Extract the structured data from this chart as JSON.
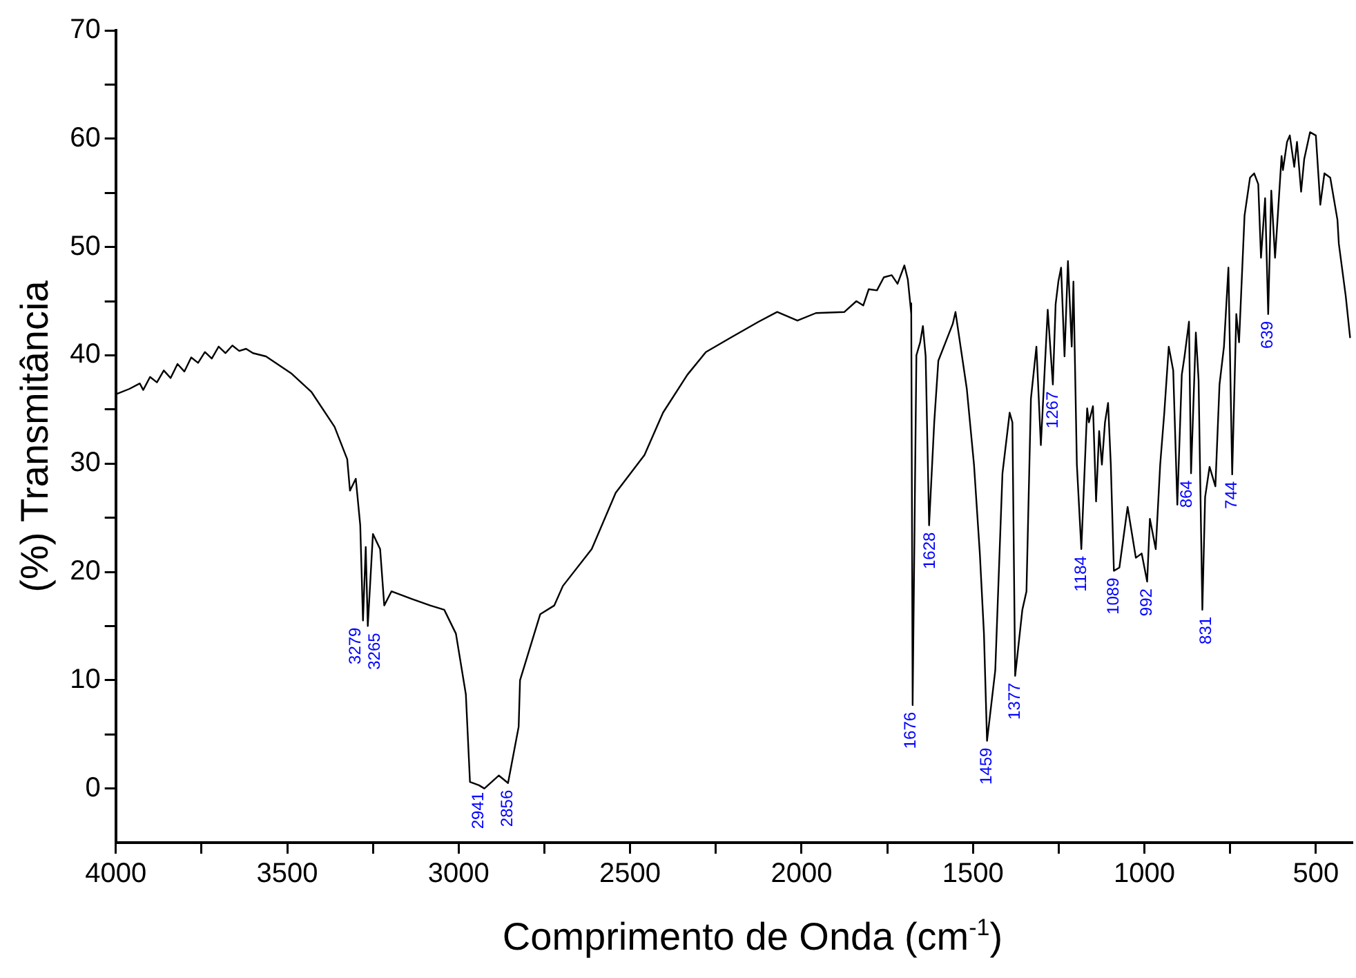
{
  "chart_data": {
    "type": "line",
    "xlabel": "Comprimento de Onda (cm$^{-1}$)",
    "ylabel": "(%) Transmitância",
    "color": "#000000",
    "grid": false,
    "legend": false,
    "xlim": [
      4000,
      395
    ],
    "xticks": [
      4000,
      {
        "value": 3750,
        "label": null
      },
      3500,
      {
        "value": 3250,
        "label": null
      },
      3000,
      {
        "value": 2750,
        "label": null
      },
      2500,
      {
        "value": 2250,
        "label": null
      },
      2000,
      {
        "value": 1750,
        "label": null
      },
      1500,
      {
        "value": 1250,
        "label": null
      },
      1000,
      {
        "value": 750,
        "label": null
      },
      500
    ],
    "ylim": [
      -5,
      70
    ],
    "yticks": [
      0,
      {
        "value": 5,
        "label": null
      },
      10,
      {
        "value": 15,
        "label": null
      },
      20,
      {
        "value": 25,
        "label": null
      },
      30,
      {
        "value": 35,
        "label": null
      },
      40,
      {
        "value": 45,
        "label": null
      },
      50,
      {
        "value": 55,
        "label": null
      },
      60,
      {
        "value": 65,
        "label": null
      },
      70
    ],
    "x": [
      4000,
      3960,
      3930,
      3920,
      3900,
      3880,
      3860,
      3840,
      3820,
      3800,
      3780,
      3760,
      3740,
      3720,
      3700,
      3680,
      3660,
      3640,
      3620,
      3600,
      3562,
      3487,
      3429,
      3362,
      3325,
      3317,
      3300,
      3287,
      3279,
      3271,
      3265,
      3250,
      3229,
      3217,
      3196,
      3137,
      3083,
      3042,
      3008,
      2979,
      2967,
      2941,
      2925,
      2883,
      2856,
      2825,
      2821,
      2762,
      2721,
      2696,
      2612,
      2542,
      2458,
      2404,
      2333,
      2279,
      2208,
      2125,
      2071,
      2012,
      1958,
      1875,
      1840,
      1820,
      1804,
      1780,
      1760,
      1737,
      1720,
      1700,
      1690,
      1683,
      1680,
      1676,
      1665,
      1654,
      1646,
      1638,
      1628,
      1613,
      1601,
      1580,
      1559,
      1551,
      1538,
      1518,
      1497,
      1480,
      1468,
      1459,
      1435,
      1414,
      1393,
      1385,
      1377,
      1356,
      1344,
      1331,
      1315,
      1302,
      1282,
      1267,
      1259,
      1251,
      1243,
      1233,
      1223,
      1212,
      1207,
      1197,
      1184,
      1167,
      1162,
      1150,
      1141,
      1132,
      1124,
      1115,
      1106,
      1098,
      1089,
      1073,
      1049,
      1025,
      1008,
      992,
      984,
      967,
      954,
      942,
      929,
      916,
      904,
      891,
      883,
      870,
      864,
      850,
      842,
      831,
      823,
      810,
      793,
      781,
      768,
      755,
      744,
      732,
      724,
      708,
      692,
      680,
      668,
      660,
      648,
      639,
      630,
      619,
      611,
      600,
      596,
      584,
      576,
      563,
      555,
      543,
      534,
      517,
      500,
      487,
      475,
      458,
      437,
      433,
      413,
      400
    ],
    "values": [
      36.4,
      36.9,
      37.4,
      36.8,
      38.0,
      37.5,
      38.6,
      37.9,
      39.2,
      38.5,
      39.8,
      39.3,
      40.3,
      39.7,
      40.8,
      40.2,
      40.9,
      40.4,
      40.6,
      40.2,
      39.9,
      38.3,
      36.6,
      33.4,
      30.4,
      27.5,
      28.6,
      24.3,
      15.5,
      22.3,
      15.0,
      23.5,
      22.1,
      16.9,
      18.2,
      17.5,
      16.9,
      16.5,
      14.3,
      8.7,
      0.6,
      0.3,
      0.0,
      1.2,
      0.5,
      5.7,
      10.0,
      16.1,
      16.9,
      18.7,
      22.1,
      27.3,
      30.8,
      34.7,
      38.2,
      40.3,
      41.6,
      43.1,
      44.0,
      43.2,
      43.9,
      44.0,
      45.0,
      44.6,
      46.1,
      46.0,
      47.2,
      47.4,
      46.6,
      48.3,
      47.0,
      44.8,
      43.8,
      7.7,
      40.0,
      41.2,
      42.7,
      39.9,
      24.3,
      33.8,
      39.5,
      41.2,
      42.9,
      44.0,
      41.2,
      36.9,
      29.9,
      21.7,
      14.3,
      4.4,
      10.9,
      29.1,
      34.7,
      33.8,
      10.4,
      16.5,
      18.2,
      36.0,
      40.8,
      31.7,
      44.2,
      37.3,
      44.7,
      46.8,
      48.1,
      39.9,
      48.7,
      40.8,
      46.8,
      29.9,
      22.1,
      35.1,
      33.8,
      35.3,
      26.5,
      33.0,
      29.9,
      33.8,
      35.6,
      29.9,
      20.1,
      20.4,
      26.0,
      21.3,
      21.7,
      19.1,
      24.9,
      22.1,
      29.9,
      34.7,
      40.8,
      38.6,
      26.2,
      38.2,
      39.9,
      43.1,
      29.1,
      42.1,
      37.7,
      16.5,
      26.9,
      29.7,
      27.9,
      37.3,
      40.8,
      48.1,
      29.0,
      43.8,
      41.2,
      52.9,
      56.4,
      56.8,
      55.8,
      49.0,
      54.5,
      43.8,
      55.2,
      49.0,
      52.9,
      58.4,
      57.1,
      59.7,
      60.3,
      57.4,
      59.7,
      55.1,
      58.1,
      60.6,
      60.3,
      53.9,
      56.8,
      56.4,
      52.5,
      50.3,
      45.5,
      41.6
    ],
    "annotations": [
      {
        "text": "3279",
        "x": 3279,
        "y": 15.5
      },
      {
        "text": "3265",
        "x": 3265,
        "y": 15.0
      },
      {
        "text": "2941",
        "x": 2941,
        "y": 0.3
      },
      {
        "text": "2856",
        "x": 2856,
        "y": 0.5
      },
      {
        "text": "1676",
        "x": 1676,
        "y": 7.7
      },
      {
        "text": "1628",
        "x": 1628,
        "y": 24.3
      },
      {
        "text": "1459",
        "x": 1459,
        "y": 4.4
      },
      {
        "text": "1377",
        "x": 1377,
        "y": 10.4
      },
      {
        "text": "1267",
        "x": 1267,
        "y": 37.3
      },
      {
        "text": "1184",
        "x": 1184,
        "y": 22.1
      },
      {
        "text": "1089",
        "x": 1089,
        "y": 20.1
      },
      {
        "text": "992",
        "x": 992,
        "y": 19.1
      },
      {
        "text": "864",
        "x": 864,
        "y": 29.1
      },
      {
        "text": "831",
        "x": 831,
        "y": 16.5
      },
      {
        "text": "744",
        "x": 744,
        "y": 29.0
      },
      {
        "text": "639",
        "x": 639,
        "y": 43.8
      }
    ]
  }
}
